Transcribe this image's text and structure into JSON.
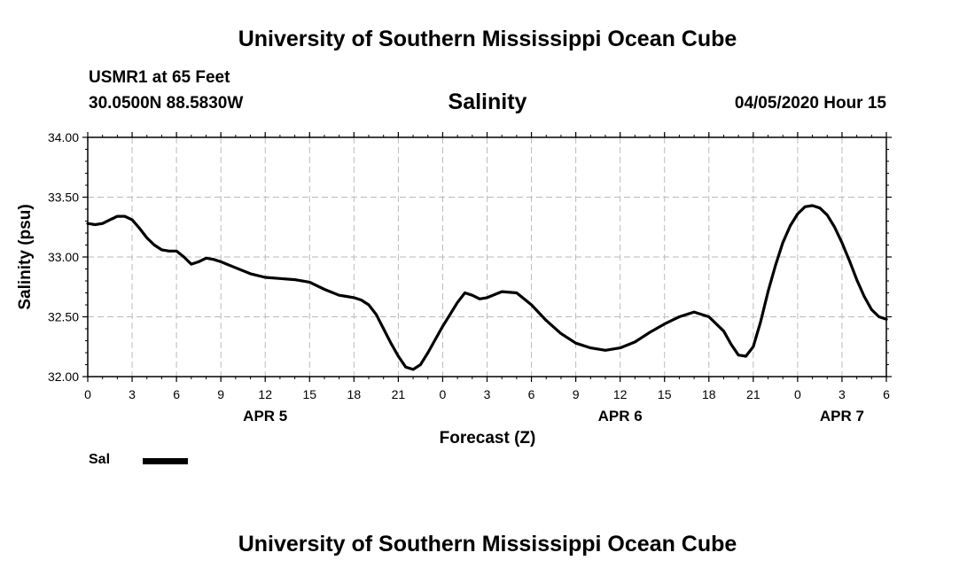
{
  "header": {
    "title": "University of Southern Mississippi Ocean Cube",
    "station": "USMR1 at 65 Feet",
    "coordinates": "30.0500N 88.5830W",
    "parameter": "Salinity",
    "datetime": "04/05/2020 Hour 15"
  },
  "footer": {
    "title": "University of Southern Mississippi Ocean Cube"
  },
  "legend": {
    "label": "Sal"
  },
  "chart_data": {
    "type": "line",
    "title": "Salinity",
    "xlabel": "Forecast (Z)",
    "ylabel": "Salinity (psu)",
    "xlim": [
      0,
      54
    ],
    "ylim": [
      32.0,
      34.0
    ],
    "ytick_step": 0.5,
    "ytick_labels": [
      "32.00",
      "32.50",
      "33.00",
      "33.50",
      "34.00"
    ],
    "xtick_step": 3,
    "xtick_labels": [
      "0",
      "3",
      "6",
      "9",
      "12",
      "15",
      "18",
      "21",
      "0",
      "3",
      "6",
      "9",
      "12",
      "15",
      "18",
      "21",
      "0",
      "3",
      "6"
    ],
    "day_labels": [
      {
        "label": "APR 5",
        "hour": 12
      },
      {
        "label": "APR 6",
        "hour": 36
      },
      {
        "label": "APR 7",
        "hour": 51
      }
    ],
    "grid": true,
    "series": [
      {
        "name": "Sal",
        "color": "#000000",
        "x": [
          0,
          0.5,
          1,
          1.5,
          2,
          2.5,
          3,
          3.5,
          4,
          4.5,
          5,
          5.5,
          6,
          6.5,
          7,
          7.5,
          8,
          8.5,
          9,
          10,
          11,
          12,
          13,
          14,
          15,
          16,
          17,
          17.5,
          18,
          18.5,
          19,
          19.5,
          20,
          20.5,
          21,
          21.5,
          22,
          22.5,
          23,
          23.5,
          24,
          24.5,
          25,
          25.5,
          26,
          26.5,
          27,
          28,
          29,
          30,
          31,
          32,
          33,
          34,
          35,
          36,
          37,
          38,
          39,
          40,
          41,
          42,
          43,
          43.5,
          44,
          44.5,
          45,
          45.5,
          46,
          46.5,
          47,
          47.5,
          48,
          48.5,
          49,
          49.5,
          50,
          50.5,
          51,
          51.5,
          52,
          52.5,
          53,
          53.5,
          54
        ],
        "values": [
          33.28,
          33.27,
          33.28,
          33.31,
          33.34,
          33.34,
          33.31,
          33.24,
          33.16,
          33.1,
          33.06,
          33.05,
          33.05,
          33.0,
          32.94,
          32.96,
          32.99,
          32.98,
          32.96,
          32.91,
          32.86,
          32.83,
          32.82,
          32.81,
          32.79,
          32.73,
          32.68,
          32.67,
          32.66,
          32.64,
          32.6,
          32.52,
          32.4,
          32.28,
          32.17,
          32.08,
          32.06,
          32.1,
          32.2,
          32.31,
          32.42,
          32.52,
          32.62,
          32.7,
          32.68,
          32.65,
          32.66,
          32.71,
          32.7,
          32.6,
          32.47,
          32.36,
          32.28,
          32.24,
          32.22,
          32.24,
          32.29,
          32.37,
          32.44,
          32.5,
          32.54,
          32.5,
          32.38,
          32.27,
          32.18,
          32.17,
          32.25,
          32.46,
          32.71,
          32.93,
          33.12,
          33.26,
          33.36,
          33.42,
          33.43,
          33.41,
          33.35,
          33.25,
          33.12,
          32.97,
          32.81,
          32.67,
          32.56,
          32.5,
          32.48
        ]
      }
    ]
  }
}
